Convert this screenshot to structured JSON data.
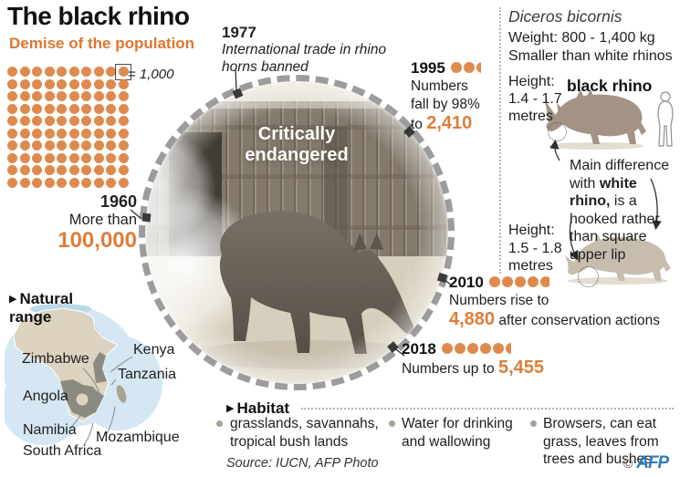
{
  "colors": {
    "accent_orange": "#dd7e38",
    "dot_orange": "#de8a4e",
    "afp_blue": "#2f7cba"
  },
  "header": {
    "title": "The black rhino",
    "subtitle": "Demise of the population"
  },
  "pictogram": {
    "rows": 10,
    "cols": 10,
    "unit_label": "= 1,000"
  },
  "timeline": {
    "y1960": {
      "year": "1960",
      "prefix": "More than",
      "value": "100,000"
    },
    "y1977": {
      "year": "1977",
      "note": "International trade in rhino horns banned"
    },
    "y1995": {
      "year": "1995",
      "dots": {
        "full": 2,
        "partial": 0.45
      },
      "line1": "Numbers",
      "line2": "fall by 98%",
      "prefix": "to ",
      "value": "2,410"
    },
    "y2010": {
      "year": "2010",
      "dots": {
        "full": 4,
        "partial": 0.85
      },
      "line1": "Numbers rise to",
      "value": "4,880",
      "suffix": " after conservation actions"
    },
    "y2018": {
      "year": "2018",
      "dots": {
        "full": 5,
        "partial": 0.5
      },
      "prefix": "Numbers up to ",
      "value": "5,455"
    }
  },
  "center": {
    "status_line1": "Critically",
    "status_line2": "endangered"
  },
  "species": {
    "name": "Diceros bicornis",
    "weight": "Weight:  800 - 1,400 kg",
    "size_note": "Smaller than white rhinos",
    "black_rhino": {
      "label": "black rhino",
      "height_label": "Height:",
      "height_range": "1.4 - 1.7",
      "height_unit": "metres"
    },
    "difference": {
      "pre": "Main difference with ",
      "bold": "white rhino,",
      "post": " is a hooked rather than square upper lip"
    },
    "white_rhino": {
      "height_label": "Height:",
      "height_range": "1.5 - 1.8",
      "height_unit": "metres"
    }
  },
  "range_map": {
    "heading": "Natural range",
    "countries": [
      "Zimbabwe",
      "Kenya",
      "Tanzania",
      "Angola",
      "Namibia",
      "Mozambique",
      "South Africa"
    ]
  },
  "habitat": {
    "heading": "Habitat",
    "items": [
      "grasslands, savannahs, tropical bush lands",
      "Water for drinking and wallowing",
      "Browsers, can eat grass, leaves from trees and bushes"
    ]
  },
  "footer": {
    "source": "Source: IUCN, AFP Photo",
    "copyright": "©",
    "logo": "AFP"
  }
}
